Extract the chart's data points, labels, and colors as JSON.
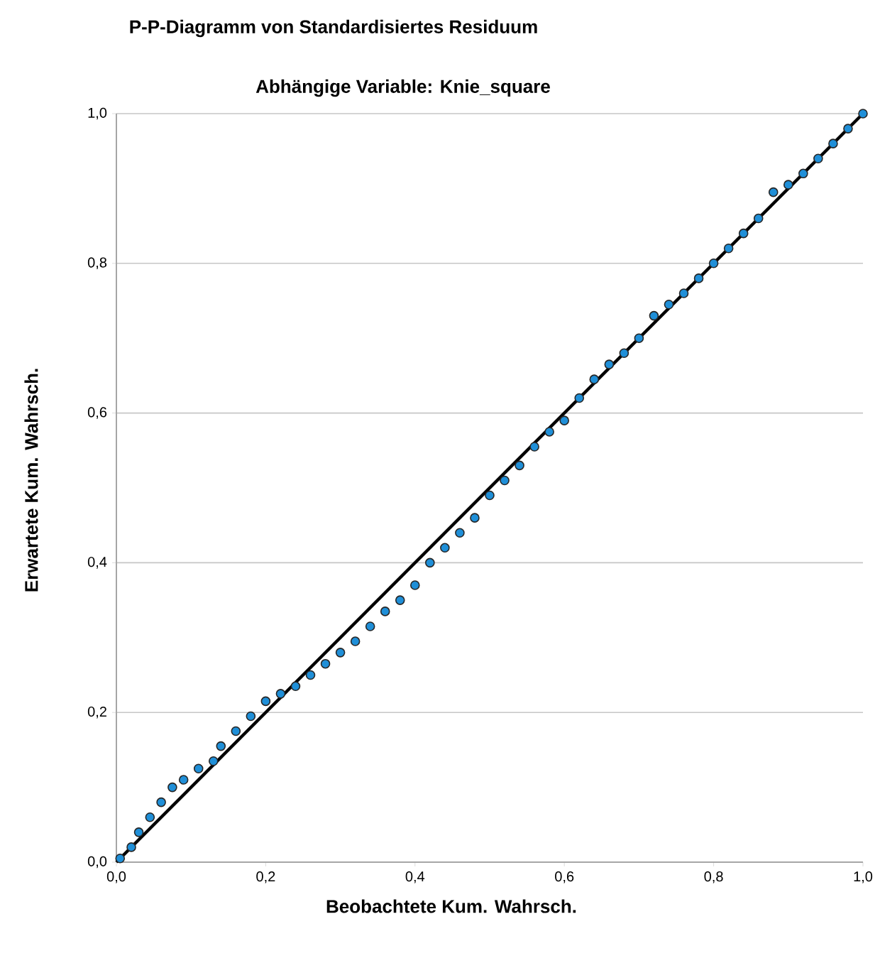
{
  "chart_data": {
    "type": "scatter",
    "title": "P-P-Diagramm von Standardisiertes Residuum",
    "subtitle": "Abhängige Variable: Knie_square",
    "xlabel": "Beobachtete Kum. Wahrsch.",
    "ylabel": "Erwartete Kum. Wahrsch.",
    "xlim": [
      0,
      1
    ],
    "ylim": [
      0,
      1
    ],
    "xticks": [
      {
        "value": 0,
        "label": "0,0"
      },
      {
        "value": 0.2,
        "label": "0,2"
      },
      {
        "value": 0.4,
        "label": "0,4"
      },
      {
        "value": 0.6,
        "label": "0,6"
      },
      {
        "value": 0.8,
        "label": "0,8"
      },
      {
        "value": 1,
        "label": "1,0"
      }
    ],
    "yticks": [
      {
        "value": 0,
        "label": "0,0"
      },
      {
        "value": 0.2,
        "label": "0,2"
      },
      {
        "value": 0.4,
        "label": "0,4"
      },
      {
        "value": 0.6,
        "label": "0,6"
      },
      {
        "value": 0.8,
        "label": "0,8"
      },
      {
        "value": 1,
        "label": "1,0"
      }
    ],
    "grid": "y",
    "series": [
      {
        "color": "#1f8fd8",
        "x": [
          0.005,
          0.02,
          0.03,
          0.045,
          0.06,
          0.075,
          0.09,
          0.11,
          0.13,
          0.14,
          0.16,
          0.18,
          0.2,
          0.22,
          0.24,
          0.26,
          0.28,
          0.3,
          0.32,
          0.34,
          0.36,
          0.38,
          0.4,
          0.42,
          0.44,
          0.46,
          0.48,
          0.5,
          0.52,
          0.54,
          0.56,
          0.58,
          0.6,
          0.62,
          0.64,
          0.66,
          0.68,
          0.7,
          0.72,
          0.74,
          0.76,
          0.78,
          0.8,
          0.82,
          0.84,
          0.86,
          0.88,
          0.9,
          0.92,
          0.94,
          0.96,
          0.98,
          1.0
        ],
        "values": [
          0.005,
          0.02,
          0.04,
          0.06,
          0.08,
          0.1,
          0.11,
          0.125,
          0.135,
          0.155,
          0.175,
          0.195,
          0.215,
          0.225,
          0.235,
          0.25,
          0.265,
          0.28,
          0.295,
          0.315,
          0.335,
          0.35,
          0.37,
          0.4,
          0.42,
          0.44,
          0.46,
          0.49,
          0.51,
          0.53,
          0.555,
          0.575,
          0.59,
          0.62,
          0.645,
          0.665,
          0.68,
          0.7,
          0.73,
          0.745,
          0.76,
          0.78,
          0.8,
          0.82,
          0.84,
          0.86,
          0.895,
          0.905,
          0.92,
          0.94,
          0.96,
          0.98,
          1.0
        ]
      },
      {
        "type": "line",
        "color": "#000000",
        "x": [
          0,
          1
        ],
        "values": [
          0,
          1
        ]
      }
    ]
  }
}
